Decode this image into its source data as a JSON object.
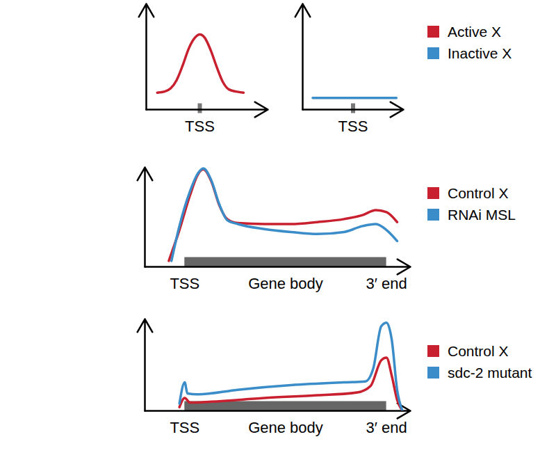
{
  "chart_data": [
    {
      "type": "line",
      "xlim": [
        0,
        100
      ],
      "ylim": [
        0,
        100
      ],
      "tick_labels": "x",
      "xticks": [
        {
          "value": 44,
          "label": "TSS"
        }
      ],
      "series": [
        {
          "name": "Active X",
          "color": "#c8202f",
          "x": [
            9,
            15,
            20,
            25,
            30,
            35,
            40,
            44,
            48,
            53,
            58,
            63,
            68,
            74,
            80
          ],
          "values": [
            16,
            17,
            20,
            28,
            42,
            58,
            68,
            71,
            68,
            56,
            40,
            26,
            19,
            17,
            16
          ]
        }
      ]
    },
    {
      "type": "line",
      "xlim": [
        0,
        100
      ],
      "ylim": [
        0,
        100
      ],
      "tick_labels": "x",
      "legend": "right",
      "xticks": [
        {
          "value": 50,
          "label": "TSS"
        }
      ],
      "series": [
        {
          "name": "Inactive X",
          "color": "#3a8dc8",
          "x": [
            10,
            93
          ],
          "values": [
            11,
            11
          ]
        }
      ]
    },
    {
      "type": "line",
      "xlim": [
        0,
        100
      ],
      "ylim": [
        0,
        100
      ],
      "tick_labels": "x",
      "legend": "right",
      "xticks": [
        {
          "value": 15,
          "label": "TSS"
        },
        {
          "value": 53,
          "label": "Gene body"
        },
        {
          "value": 91,
          "label": "3′ end"
        }
      ],
      "series": [
        {
          "name": "Control X",
          "color": "#c8202f",
          "x": [
            9,
            13,
            17,
            20,
            22,
            25,
            28,
            31,
            35,
            45,
            55,
            65,
            75,
            82,
            87,
            91,
            95
          ],
          "values": [
            6,
            37,
            72,
            93,
            98,
            86,
            62,
            48,
            44,
            43,
            43,
            45,
            48,
            52,
            57,
            55,
            45
          ]
        },
        {
          "name": "RNAi MSL",
          "color": "#3a8dc8",
          "x": [
            10,
            13,
            17,
            20,
            22,
            25,
            28,
            31,
            35,
            45,
            55,
            65,
            75,
            82,
            87,
            91,
            95
          ],
          "values": [
            6,
            41,
            76,
            94,
            99,
            87,
            63,
            47,
            43,
            38,
            35,
            33,
            35,
            41,
            43,
            37,
            26
          ]
        }
      ]
    },
    {
      "type": "line",
      "xlim": [
        0,
        100
      ],
      "ylim": [
        0,
        100
      ],
      "tick_labels": "x",
      "legend": "right",
      "xticks": [
        {
          "value": 15,
          "label": "TSS"
        },
        {
          "value": 53,
          "label": "Gene body"
        },
        {
          "value": 91,
          "label": "3′ end"
        }
      ],
      "series": [
        {
          "name": "Control X",
          "color": "#c8202f",
          "x": [
            13,
            15,
            17,
            25,
            45,
            65,
            80,
            85,
            89,
            91,
            93,
            95,
            97
          ],
          "values": [
            4,
            14,
            9,
            10,
            14,
            17,
            20,
            27,
            55,
            58,
            38,
            12,
            0
          ]
        },
        {
          "name": "sdc-2 mutant",
          "color": "#3a8dc8",
          "x": [
            13,
            15,
            16,
            20,
            35,
            55,
            75,
            83,
            86,
            89,
            91,
            93,
            95,
            97
          ],
          "values": [
            8,
            31,
            19,
            18,
            23,
            28,
            31,
            32,
            46,
            92,
            96,
            77,
            23,
            0
          ]
        }
      ]
    }
  ]
}
